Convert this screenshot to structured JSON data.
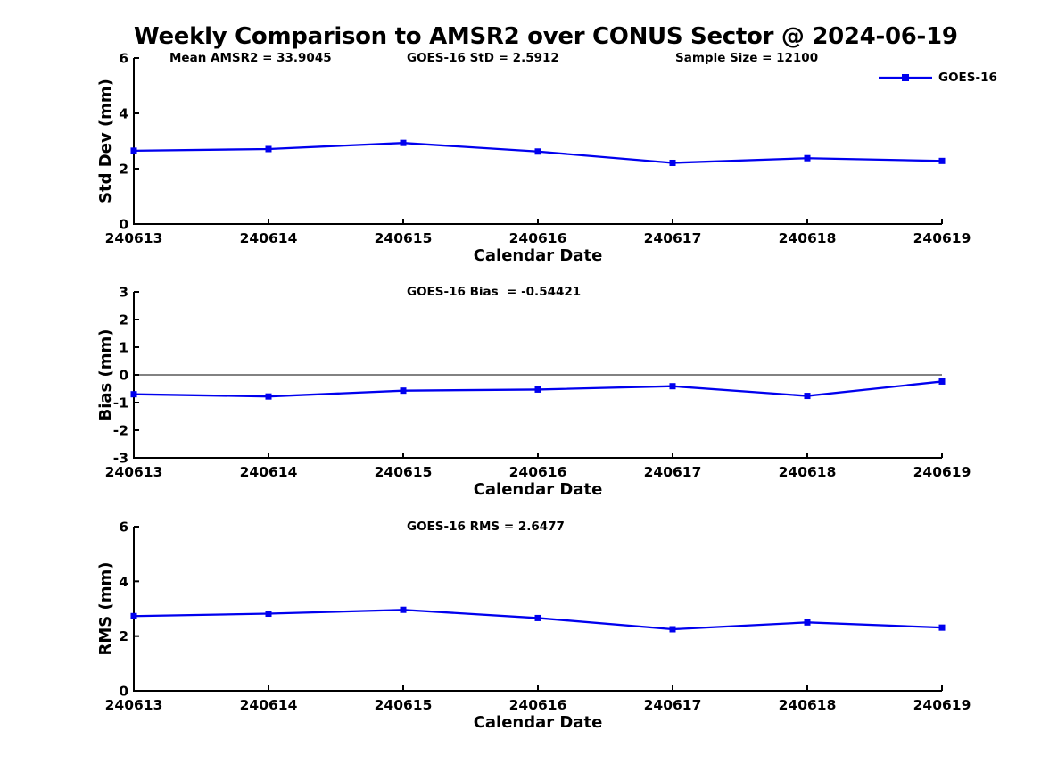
{
  "figure": {
    "title": "Weekly Comparison to AMSR2 over CONUS Sector @ 2024-06-19"
  },
  "legend": {
    "label": "GOES-16"
  },
  "colors": {
    "series": "#0000EE",
    "zero_line": "#595959",
    "axis": "#000000",
    "background": "#FFFFFF"
  },
  "chart_data": [
    {
      "type": "line",
      "name": "std-dev",
      "ylabel": "Std Dev (mm)",
      "xlabel": "Calendar Date",
      "ylim": [
        0,
        6
      ],
      "yticks": [
        0,
        2,
        4,
        6
      ],
      "grid": false,
      "legend_position": "top-right",
      "categories": [
        "240613",
        "240614",
        "240615",
        "240616",
        "240617",
        "240618",
        "240619"
      ],
      "series": [
        {
          "name": "GOES-16",
          "marker": "square",
          "values": [
            2.65,
            2.71,
            2.93,
            2.62,
            2.21,
            2.38,
            2.28
          ]
        }
      ],
      "annotations": [
        "Mean AMSR2 = 33.9045",
        "GOES-16 StD = 2.5912",
        "Sample Size = 12100"
      ]
    },
    {
      "type": "line",
      "name": "bias",
      "ylabel": "Bias (mm)",
      "xlabel": "Calendar Date",
      "ylim": [
        -3,
        3
      ],
      "yticks": [
        -3,
        -2,
        -1,
        0,
        1,
        2,
        3
      ],
      "grid": false,
      "zero_line": true,
      "categories": [
        "240613",
        "240614",
        "240615",
        "240616",
        "240617",
        "240618",
        "240619"
      ],
      "series": [
        {
          "name": "GOES-16",
          "marker": "square",
          "values": [
            -0.7,
            -0.78,
            -0.57,
            -0.53,
            -0.41,
            -0.76,
            -0.24
          ]
        }
      ],
      "annotations": [
        "GOES-16 Bias  = -0.54421"
      ]
    },
    {
      "type": "line",
      "name": "rms",
      "ylabel": "RMS (mm)",
      "xlabel": "Calendar Date",
      "ylim": [
        0,
        6
      ],
      "yticks": [
        0,
        2,
        4,
        6
      ],
      "grid": false,
      "categories": [
        "240613",
        "240614",
        "240615",
        "240616",
        "240617",
        "240618",
        "240619"
      ],
      "series": [
        {
          "name": "GOES-16",
          "marker": "square",
          "values": [
            2.73,
            2.82,
            2.96,
            2.66,
            2.25,
            2.5,
            2.31
          ]
        }
      ],
      "annotations": [
        "GOES-16 RMS = 2.6477"
      ]
    }
  ]
}
